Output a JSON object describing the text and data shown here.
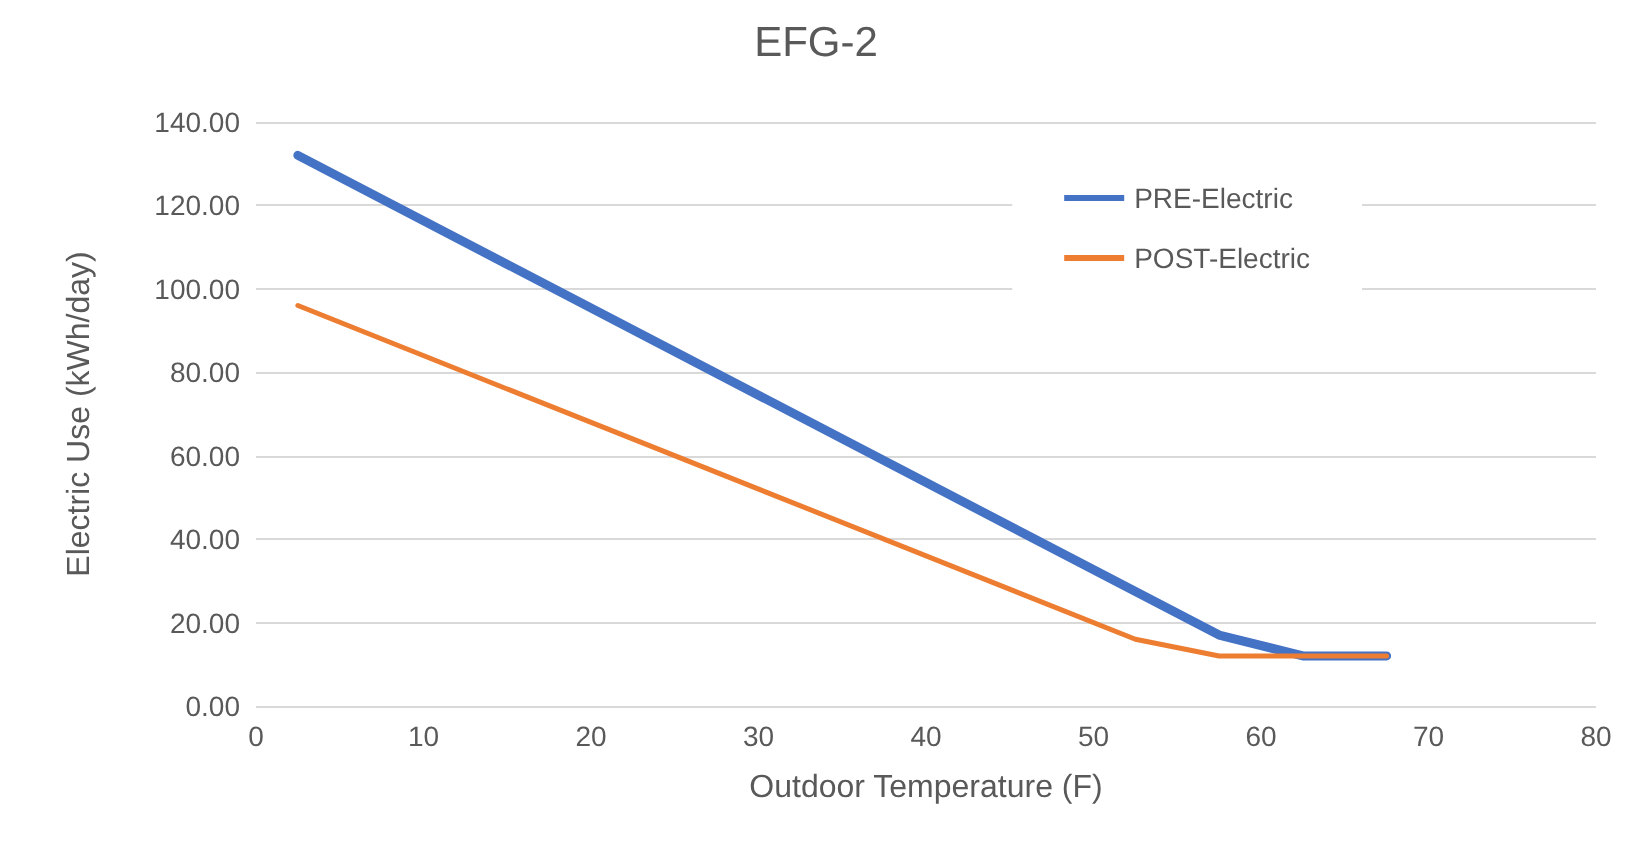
{
  "chart_data": {
    "type": "line",
    "title": "EFG-2",
    "xlabel": "Outdoor Temperature (F)",
    "ylabel": "Electric Use (kWh/day)",
    "xlim": [
      0,
      80
    ],
    "xticks": [
      0,
      10,
      20,
      30,
      40,
      50,
      60,
      70,
      80
    ],
    "ylim": [
      0,
      140
    ],
    "yticks": [
      {
        "value": 0,
        "label": "0.00"
      },
      {
        "value": 20,
        "label": "20.00"
      },
      {
        "value": 40,
        "label": "40.00"
      },
      {
        "value": 60,
        "label": "60.00"
      },
      {
        "value": 80,
        "label": "80.00"
      },
      {
        "value": 100,
        "label": "100.00"
      },
      {
        "value": 120,
        "label": "120.00"
      },
      {
        "value": 140,
        "label": "140.00"
      }
    ],
    "grid": "y",
    "legend": "top right",
    "marker": "none",
    "line_style": "solid",
    "series": [
      {
        "name": "PRE-Electric",
        "color": "#4472c4",
        "x": [
          2.5,
          57.5,
          62.5,
          67.5
        ],
        "values": [
          132,
          17,
          12,
          12
        ]
      },
      {
        "name": "POST-Electric",
        "color": "#ed7d31",
        "x": [
          2.5,
          52.5,
          57.5,
          67.5
        ],
        "values": [
          96,
          16,
          12,
          12
        ]
      }
    ]
  }
}
